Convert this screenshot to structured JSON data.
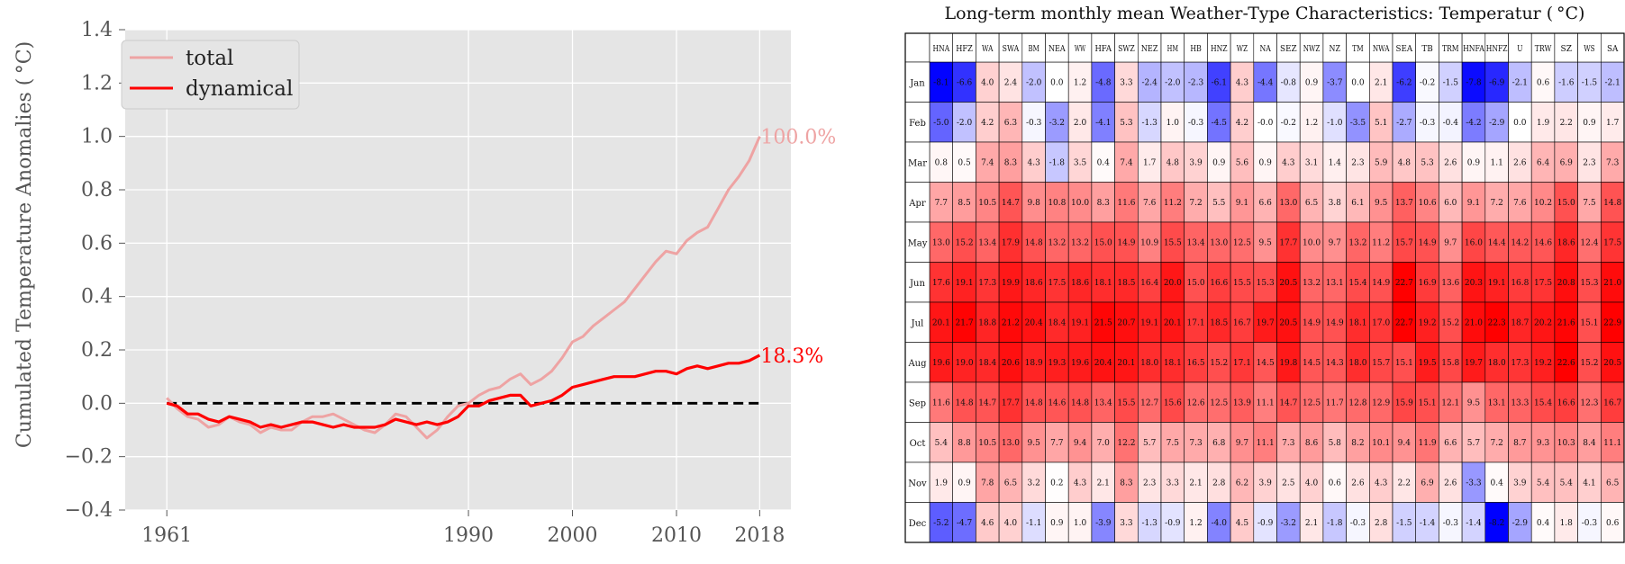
{
  "chart_data": [
    {
      "type": "line",
      "title": "",
      "xlabel": "",
      "ylabel": "Cumulated Temperature Anomalies ($^\\circ$C)",
      "ylabel_display": "Cumulated Temperature Anomalies ( °C)",
      "xlim": [
        1957,
        2021
      ],
      "ylim": [
        -0.4,
        1.4
      ],
      "xticks": [
        1961,
        1990,
        2000,
        2010,
        2018
      ],
      "xtick_labels": [
        "1961",
        "1990",
        "2000",
        "2010",
        "2018"
      ],
      "yticks": [
        -0.4,
        -0.2,
        0.0,
        0.2,
        0.4,
        0.6,
        0.8,
        1.0,
        1.2,
        1.4
      ],
      "ytick_labels": [
        "−0.4",
        "−0.2",
        "0.0",
        "0.2",
        "0.4",
        "0.6",
        "0.8",
        "1.0",
        "1.2",
        "1.4"
      ],
      "grid": true,
      "legend_position": "top-left",
      "reference_line": {
        "y": 0.0,
        "style": "dashed",
        "color": "#000000"
      },
      "series": [
        {
          "name": "total",
          "color": "#eea3a3",
          "end_label": "100.0%",
          "x": [
            1961,
            1962,
            1963,
            1964,
            1965,
            1966,
            1967,
            1968,
            1969,
            1970,
            1971,
            1972,
            1973,
            1974,
            1975,
            1976,
            1977,
            1978,
            1979,
            1980,
            1981,
            1982,
            1983,
            1984,
            1985,
            1986,
            1987,
            1988,
            1989,
            1990,
            1991,
            1992,
            1993,
            1994,
            1995,
            1996,
            1997,
            1998,
            1999,
            2000,
            2001,
            2002,
            2003,
            2004,
            2005,
            2006,
            2007,
            2008,
            2009,
            2010,
            2011,
            2012,
            2013,
            2014,
            2015,
            2016,
            2017,
            2018
          ],
          "y": [
            0.02,
            -0.02,
            -0.05,
            -0.06,
            -0.09,
            -0.08,
            -0.05,
            -0.07,
            -0.08,
            -0.11,
            -0.09,
            -0.1,
            -0.1,
            -0.07,
            -0.05,
            -0.05,
            -0.04,
            -0.06,
            -0.08,
            -0.1,
            -0.11,
            -0.08,
            -0.04,
            -0.05,
            -0.09,
            -0.13,
            -0.1,
            -0.05,
            -0.01,
            0.0,
            0.03,
            0.05,
            0.06,
            0.09,
            0.11,
            0.07,
            0.09,
            0.12,
            0.17,
            0.23,
            0.25,
            0.29,
            0.32,
            0.35,
            0.38,
            0.43,
            0.48,
            0.53,
            0.57,
            0.56,
            0.61,
            0.64,
            0.66,
            0.73,
            0.8,
            0.85,
            0.91,
            1.0
          ]
        },
        {
          "name": "dynamical",
          "color": "#ff0000",
          "end_label": "18.3%",
          "x": [
            1961,
            1962,
            1963,
            1964,
            1965,
            1966,
            1967,
            1968,
            1969,
            1970,
            1971,
            1972,
            1973,
            1974,
            1975,
            1976,
            1977,
            1978,
            1979,
            1980,
            1981,
            1982,
            1983,
            1984,
            1985,
            1986,
            1987,
            1988,
            1989,
            1990,
            1991,
            1992,
            1993,
            1994,
            1995,
            1996,
            1997,
            1998,
            1999,
            2000,
            2001,
            2002,
            2003,
            2004,
            2005,
            2006,
            2007,
            2008,
            2009,
            2010,
            2011,
            2012,
            2013,
            2014,
            2015,
            2016,
            2017,
            2018
          ],
          "y": [
            0.0,
            -0.01,
            -0.04,
            -0.04,
            -0.06,
            -0.07,
            -0.05,
            -0.06,
            -0.07,
            -0.09,
            -0.08,
            -0.09,
            -0.08,
            -0.07,
            -0.07,
            -0.08,
            -0.09,
            -0.08,
            -0.09,
            -0.09,
            -0.09,
            -0.08,
            -0.06,
            -0.07,
            -0.08,
            -0.07,
            -0.08,
            -0.07,
            -0.05,
            -0.01,
            -0.01,
            0.01,
            0.02,
            0.03,
            0.03,
            -0.01,
            0.0,
            0.01,
            0.03,
            0.06,
            0.07,
            0.08,
            0.09,
            0.1,
            0.1,
            0.1,
            0.11,
            0.12,
            0.12,
            0.11,
            0.13,
            0.14,
            0.13,
            0.14,
            0.15,
            0.15,
            0.16,
            0.18
          ]
        }
      ]
    },
    {
      "type": "heatmap",
      "title": "Long-term monthly mean Weather-Type Characteristics: Temperatur ($^\\circ$C)",
      "title_display": "Long-term monthly mean Weather-Type Characteristics: Temperatur ( °C)",
      "columns": [
        "HNA",
        "HFZ",
        "WA",
        "SWA",
        "BM",
        "NEA",
        "WW",
        "HFA",
        "SWZ",
        "NEZ",
        "HM",
        "HB",
        "HNZ",
        "WZ",
        "NA",
        "SEZ",
        "NWZ",
        "NZ",
        "TM",
        "NWA",
        "SEA",
        "TB",
        "TRM",
        "HNFA",
        "HNFZ",
        "U",
        "TRW",
        "SZ",
        "WS",
        "SA"
      ],
      "rows": [
        "Jan",
        "Feb",
        "Mar",
        "Apr",
        "May",
        "Jun",
        "Jul",
        "Aug",
        "Sep",
        "Oct",
        "Nov",
        "Dec"
      ],
      "color_scale": {
        "type": "diverging",
        "low": "#0000ff",
        "mid": "#ffffff",
        "high": "#ff0000",
        "vmin": -8.2,
        "vmax": 22.0
      },
      "values": [
        [
          "-8.1",
          "-6.6",
          "4.0",
          "2.4",
          "-2.0",
          "0.0",
          "1.2",
          "-4.8",
          "3.3",
          "-2.4",
          "-2.0",
          "-2.3",
          "-6.1",
          "4.3",
          "-4.4",
          "-0.8",
          "0.9",
          "-3.7",
          "0.0",
          "2.1",
          "-6.2",
          "-0.2",
          "-1.5",
          "-7.8",
          "-6.9",
          "-2.1",
          "0.6",
          "-1.6",
          "-1.5",
          "-2.1"
        ],
        [
          "-5.0",
          "-2.0",
          "4.2",
          "6.3",
          "-0.3",
          "-3.2",
          "2.0",
          "-4.1",
          "5.3",
          "-1.3",
          "1.0",
          "-0.3",
          "-4.5",
          "4.2",
          "-0.0",
          "-0.2",
          "1.2",
          "-1.0",
          "-3.5",
          "5.1",
          "-2.7",
          "-0.3",
          "-0.4",
          "-4.2",
          "-2.9",
          "0.0",
          "1.9",
          "2.2",
          "0.9",
          "1.7"
        ],
        [
          "0.8",
          "0.5",
          "7.4",
          "8.3",
          "4.3",
          "-1.8",
          "3.5",
          "0.4",
          "7.4",
          "1.7",
          "4.8",
          "3.9",
          "0.9",
          "5.6",
          "0.9",
          "4.3",
          "3.1",
          "1.4",
          "2.3",
          "5.9",
          "4.8",
          "5.3",
          "2.6",
          "0.9",
          "1.1",
          "2.6",
          "6.4",
          "6.9",
          "2.3",
          "7.3"
        ],
        [
          "7.7",
          "8.5",
          "10.5",
          "14.7",
          "9.8",
          "10.8",
          "10.0",
          "8.3",
          "11.6",
          "7.6",
          "11.2",
          "7.2",
          "5.5",
          "9.1",
          "6.6",
          "13.0",
          "6.5",
          "3.8",
          "6.1",
          "9.5",
          "13.7",
          "10.6",
          "6.0",
          "9.1",
          "7.2",
          "7.6",
          "10.2",
          "15.0",
          "7.5",
          "14.8"
        ],
        [
          "13.0",
          "15.2",
          "13.4",
          "17.9",
          "14.8",
          "13.2",
          "13.2",
          "15.0",
          "14.9",
          "10.9",
          "15.5",
          "13.4",
          "13.0",
          "12.5",
          "9.5",
          "17.7",
          "10.0",
          "9.7",
          "13.2",
          "11.2",
          "15.7",
          "14.9",
          "9.7",
          "16.0",
          "14.4",
          "14.2",
          "14.6",
          "18.6",
          "12.4",
          "17.5"
        ],
        [
          "17.6",
          "19.1",
          "17.3",
          "19.9",
          "18.6",
          "17.5",
          "18.6",
          "18.1",
          "18.5",
          "16.4",
          "20.0",
          "15.0",
          "16.6",
          "15.5",
          "15.3",
          "20.5",
          "13.2",
          "13.1",
          "15.4",
          "14.9",
          "22.7",
          "16.9",
          "13.6",
          "20.3",
          "19.1",
          "16.8",
          "17.5",
          "20.8",
          "15.3",
          "21.0"
        ],
        [
          "20.1",
          "21.7",
          "18.8",
          "21.2",
          "20.4",
          "18.4",
          "19.1",
          "21.5",
          "20.7",
          "19.1",
          "20.1",
          "17.1",
          "18.5",
          "16.7",
          "19.7",
          "20.5",
          "14.9",
          "14.9",
          "18.1",
          "17.0",
          "22.7",
          "19.2",
          "15.2",
          "21.0",
          "22.3",
          "18.7",
          "20.2",
          "21.6",
          "15.1",
          "22.9"
        ],
        [
          "19.6",
          "19.0",
          "18.4",
          "20.6",
          "18.9",
          "19.3",
          "19.6",
          "20.4",
          "20.1",
          "18.0",
          "18.1",
          "16.5",
          "15.2",
          "17.1",
          "14.5",
          "19.8",
          "14.5",
          "14.3",
          "18.0",
          "15.7",
          "15.1",
          "19.5",
          "15.8",
          "19.7",
          "18.0",
          "17.3",
          "19.2",
          "22.6",
          "15.2",
          "20.5"
        ],
        [
          "11.6",
          "14.8",
          "14.7",
          "17.7",
          "14.8",
          "14.6",
          "14.8",
          "13.4",
          "15.5",
          "12.7",
          "15.6",
          "12.6",
          "12.5",
          "13.9",
          "11.1",
          "14.7",
          "12.5",
          "11.7",
          "12.8",
          "12.9",
          "15.9",
          "15.1",
          "12.1",
          "9.5",
          "13.1",
          "13.3",
          "15.4",
          "16.6",
          "12.3",
          "16.7"
        ],
        [
          "5.4",
          "8.8",
          "10.5",
          "13.0",
          "9.5",
          "7.7",
          "9.4",
          "7.0",
          "12.2",
          "5.7",
          "7.5",
          "7.3",
          "6.8",
          "9.7",
          "11.1",
          "7.3",
          "8.6",
          "5.8",
          "8.2",
          "10.1",
          "9.4",
          "11.9",
          "6.6",
          "5.7",
          "7.2",
          "8.7",
          "9.3",
          "10.3",
          "8.4",
          "11.1"
        ],
        [
          "1.9",
          "0.9",
          "7.8",
          "6.5",
          "3.2",
          "0.2",
          "4.3",
          "2.1",
          "8.3",
          "2.3",
          "3.3",
          "2.1",
          "2.8",
          "6.2",
          "3.9",
          "2.5",
          "4.0",
          "0.6",
          "2.6",
          "4.3",
          "2.2",
          "6.9",
          "2.6",
          "-3.3",
          "0.4",
          "3.9",
          "5.4",
          "5.4",
          "4.1",
          "6.5"
        ],
        [
          "-5.2",
          "-4.7",
          "4.6",
          "4.0",
          "-1.1",
          "0.9",
          "1.0",
          "-3.9",
          "3.3",
          "-1.3",
          "-0.9",
          "1.2",
          "-4.0",
          "4.5",
          "-0.9",
          "-3.2",
          "2.1",
          "-1.8",
          "-0.3",
          "2.8",
          "-1.5",
          "-1.4",
          "-0.3",
          "-1.4",
          "-8.2",
          "-2.9",
          "0.4",
          "1.8",
          "-0.3",
          "0.6"
        ]
      ]
    }
  ]
}
